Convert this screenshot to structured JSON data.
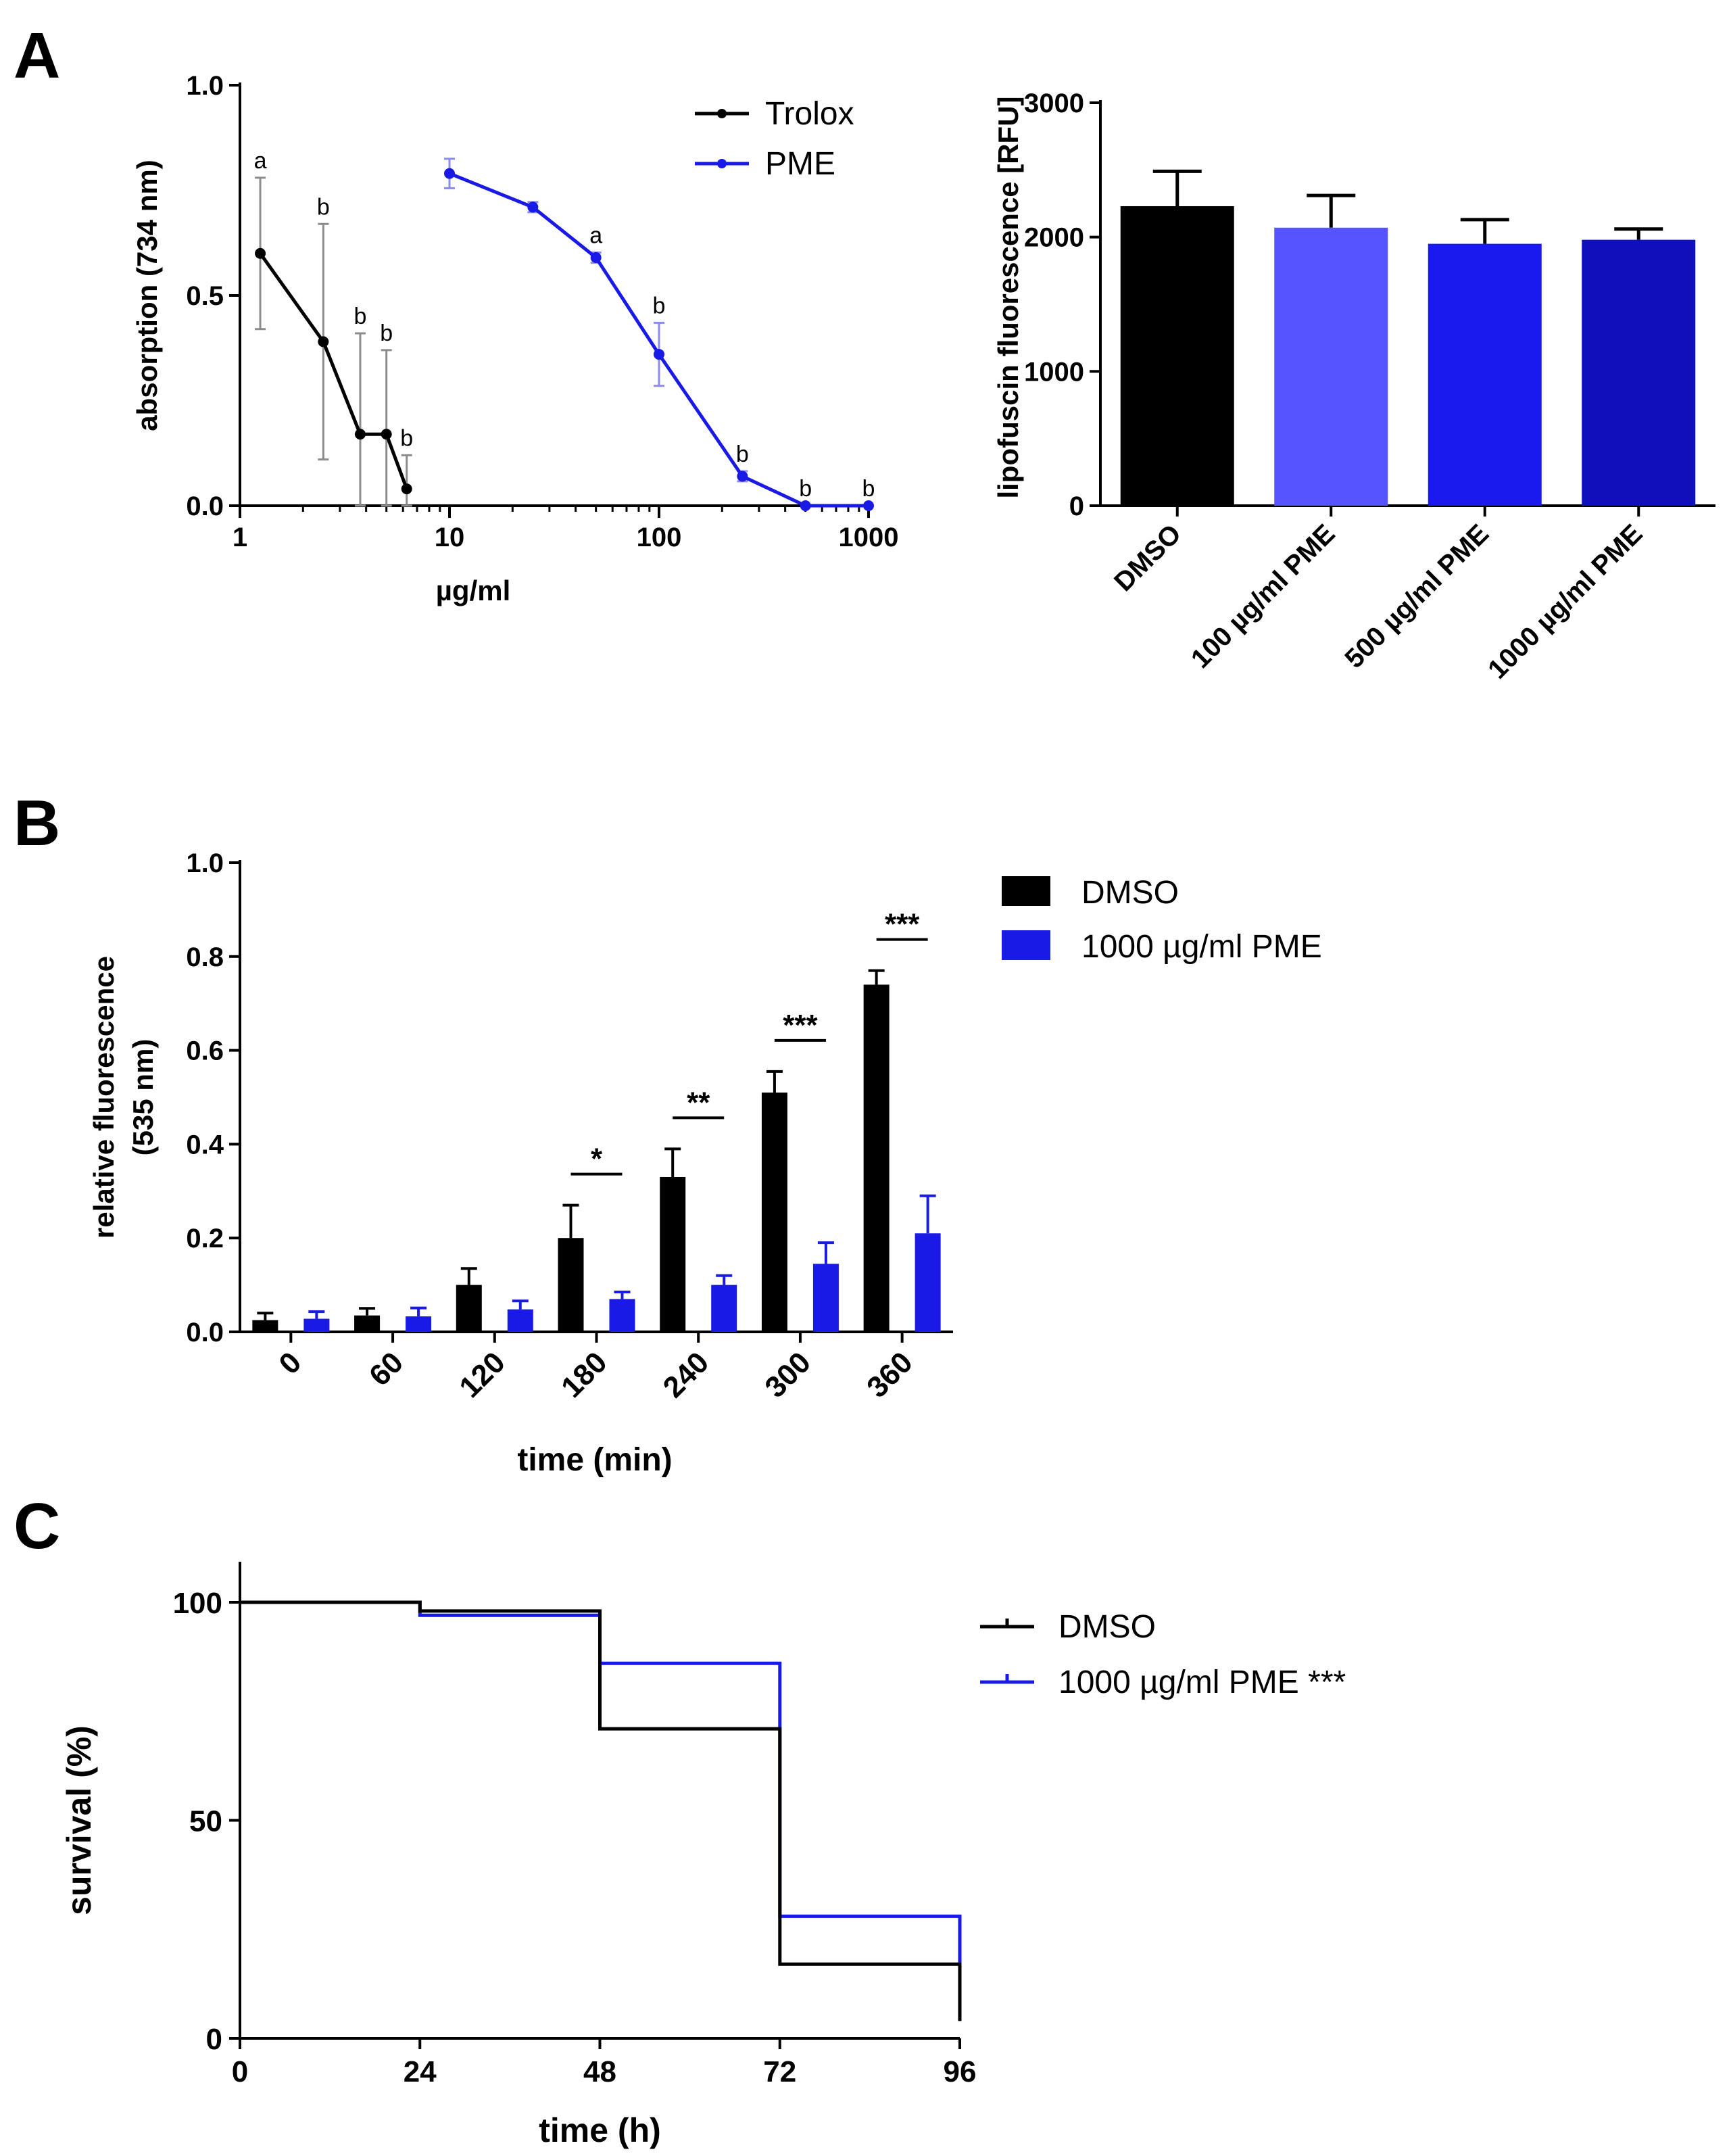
{
  "panels": {
    "A": "A",
    "B": "B",
    "C": "C"
  },
  "colors": {
    "black": "#000000",
    "blue": "#1a1ae6",
    "error_gray": "#8c8c8c",
    "error_blue_light": "#8a8af0"
  },
  "chart_data": [
    {
      "id": "A-left",
      "type": "line",
      "xscale": "log",
      "xlabel": "µg/ml",
      "ylabel": "absorption (734 nm)",
      "xlim": [
        1,
        1000
      ],
      "ylim": [
        0,
        1
      ],
      "xticks": [
        1,
        10,
        100,
        1000
      ],
      "xtick_labels": [
        "1",
        "10",
        "100",
        "1000"
      ],
      "yticks": [
        0,
        0.5,
        1
      ],
      "ytick_labels": [
        "0.0",
        "0.5",
        "1.0"
      ],
      "legend": "top-right",
      "series": [
        {
          "name": "Trolox",
          "color": "#000000",
          "x": [
            1.25,
            2.5,
            3.75,
            5,
            6.25
          ],
          "y": [
            0.6,
            0.39,
            0.17,
            0.17,
            0.04
          ],
          "err": [
            0.18,
            0.28,
            0.24,
            0.2,
            0.08
          ],
          "labels": [
            "a",
            "b",
            "b",
            "b",
            "b"
          ]
        },
        {
          "name": "PME",
          "color": "#1a1ae6",
          "x": [
            10,
            25,
            50,
            100,
            250,
            500,
            1000
          ],
          "y": [
            0.79,
            0.71,
            0.59,
            0.36,
            0.07,
            0.0,
            0.0
          ],
          "err": [
            0.035,
            0.012,
            0.012,
            0.075,
            0.012,
            0.0,
            0.0
          ],
          "labels": [
            "",
            "",
            "a",
            "b",
            "b",
            "b",
            "b"
          ]
        }
      ]
    },
    {
      "id": "A-right",
      "type": "bar",
      "ylabel": "lipofuscin fluorescence [RFU]",
      "ylim": [
        0,
        3000
      ],
      "yticks": [
        0,
        1000,
        2000,
        3000
      ],
      "ytick_labels": [
        "0",
        "1000",
        "2000",
        "3000"
      ],
      "categories": [
        "DMSO",
        "100 µg/ml PME",
        "500 µg/ml PME",
        "1000 µg/ml PME"
      ],
      "values": [
        2230,
        2070,
        1950,
        1980
      ],
      "err": [
        260,
        240,
        180,
        80
      ],
      "bar_colors": [
        "#000000",
        "#5555ff",
        "#1a1aee",
        "#0f0fbb"
      ]
    },
    {
      "id": "B",
      "type": "bar",
      "xlabel": "time (min)",
      "ylabel": "relative fluorescence\n(535 nm)",
      "ylabel_lines": [
        "relative fluorescence",
        "(535 nm)"
      ],
      "ylim": [
        0,
        1
      ],
      "yticks": [
        0,
        0.2,
        0.4,
        0.6,
        0.8,
        1.0
      ],
      "ytick_labels": [
        "0.0",
        "0.2",
        "0.4",
        "0.6",
        "0.8",
        "1.0"
      ],
      "categories": [
        "0",
        "60",
        "120",
        "180",
        "240",
        "300",
        "360"
      ],
      "legend": "top-right",
      "series": [
        {
          "name": "DMSO",
          "color": "#000000",
          "values": [
            0.025,
            0.035,
            0.1,
            0.2,
            0.33,
            0.51,
            0.74
          ],
          "err": [
            0.015,
            0.015,
            0.035,
            0.07,
            0.06,
            0.045,
            0.03
          ]
        },
        {
          "name": "1000 µg/ml PME",
          "color": "#1a1ae6",
          "values": [
            0.028,
            0.033,
            0.048,
            0.07,
            0.1,
            0.145,
            0.21
          ],
          "err": [
            0.015,
            0.018,
            0.018,
            0.015,
            0.02,
            0.045,
            0.08
          ]
        }
      ],
      "significance": [
        {
          "category": "180",
          "label": "*"
        },
        {
          "category": "240",
          "label": "**"
        },
        {
          "category": "300",
          "label": "***"
        },
        {
          "category": "360",
          "label": "***"
        }
      ]
    },
    {
      "id": "C",
      "type": "line",
      "step": true,
      "xlabel": "time (h)",
      "ylabel": "survival (%)",
      "xlim": [
        0,
        96
      ],
      "ylim": [
        0,
        100
      ],
      "xticks": [
        0,
        24,
        48,
        72,
        96
      ],
      "xtick_labels": [
        "0",
        "24",
        "48",
        "72",
        "96"
      ],
      "yticks": [
        0,
        50,
        100
      ],
      "ytick_labels": [
        "0",
        "50",
        "100"
      ],
      "legend": "top-right",
      "series": [
        {
          "name": "DMSO",
          "color": "#000000",
          "x": [
            0,
            24,
            48,
            72,
            96
          ],
          "y": [
            100,
            98,
            71,
            17,
            4
          ]
        },
        {
          "name": "1000 µg/ml PME ***",
          "color": "#1a1ae6",
          "x": [
            0,
            24,
            48,
            72,
            96
          ],
          "y": [
            100,
            97,
            86,
            28,
            4
          ]
        }
      ]
    }
  ]
}
